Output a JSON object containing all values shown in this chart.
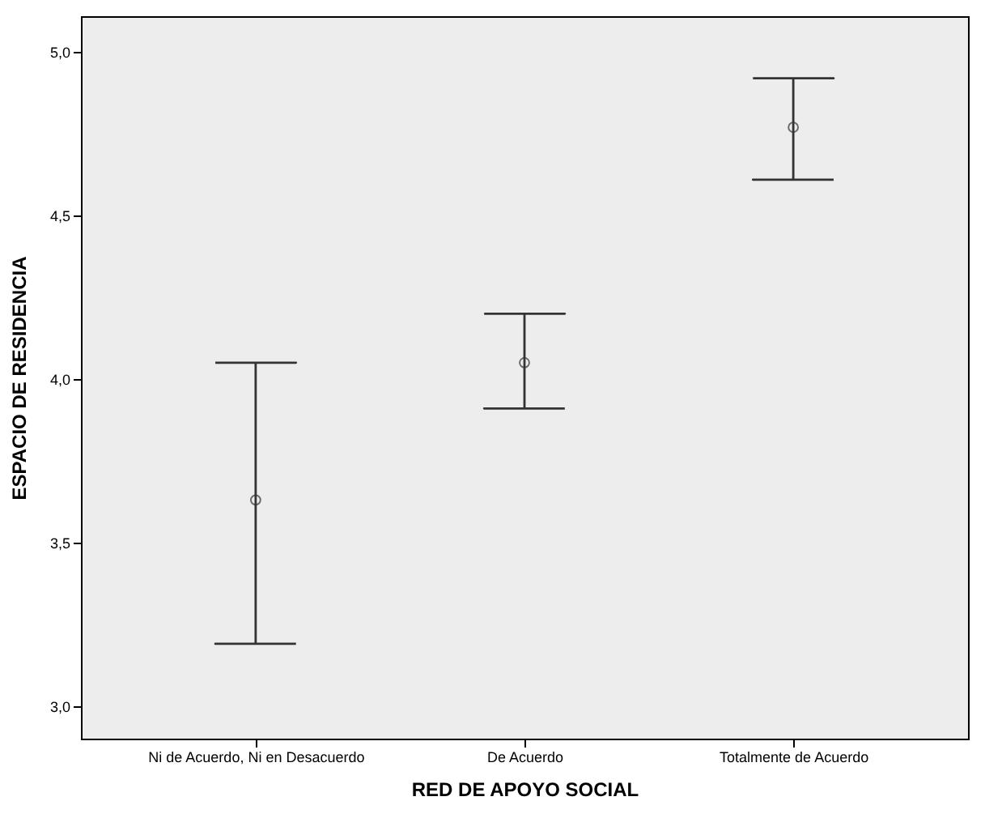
{
  "chart_data": {
    "type": "scatter",
    "xlabel": "RED DE APOYO SOCIAL",
    "ylabel": "ESPACIO DE RESIDENCIA",
    "categories": [
      "Ni de Acuerdo, Ni en Desacuerdo",
      "De Acuerdo",
      "Totalmente de Acuerdo"
    ],
    "values": [
      3.63,
      4.05,
      4.77
    ],
    "errors": [
      [
        3.19,
        4.05
      ],
      [
        3.91,
        4.2
      ],
      [
        4.61,
        4.92
      ]
    ],
    "color": "#333333",
    "marker": "circle",
    "grid": false,
    "ylim": [
      2.9,
      5.11
    ],
    "yticks": [
      {
        "value": 3,
        "label": "3,0"
      },
      {
        "value": 3.5,
        "label": "3,5"
      },
      {
        "value": 4,
        "label": "4,0"
      },
      {
        "value": 4.5,
        "label": "4,5"
      },
      {
        "value": 5,
        "label": "5,0"
      }
    ]
  }
}
